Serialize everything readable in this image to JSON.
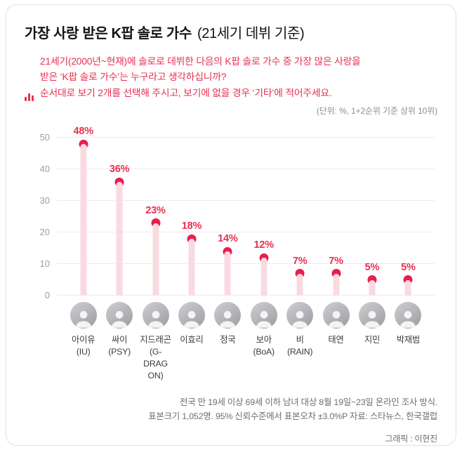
{
  "header": {
    "title_bold": "가장 사랑 받은 K팝 솔로 가수",
    "title_light": "(21세기 데뷔 기준)",
    "description": "21세기(2000년~현재)에 솔로로 데뷔한 다음의 K팝 솔로 가수 중 가장 많은 사랑을\n받은 ‘K팝 솔로 가수’는 누구라고 생각하십니까?\n순서대로 보기 2개를 선택해 주시고, 보기에 없을 경우 ‘기타’에 적어주세요.",
    "unit_note": "(단위: %, 1+2순위 기준 상위 10위)"
  },
  "chart_data": {
    "type": "bar",
    "variant": "lollipop",
    "title": "가장 사랑 받은 K팝 솔로 가수 (21세기 데뷔 기준)",
    "categories": [
      "아이유 (IU)",
      "싸이 (PSY)",
      "지드래곤 (G-DRAGON)",
      "이효리",
      "정국",
      "보아 (BoA)",
      "비 (RAIN)",
      "태연",
      "지민",
      "박재범"
    ],
    "category_display": [
      "아이유\n(IU)",
      "싸이\n(PSY)",
      "지드래곤\n(G-DRAG\nON)",
      "이효리",
      "정국",
      "보아\n(BoA)",
      "비\n(RAIN)",
      "태연",
      "지민",
      "박재범"
    ],
    "values": [
      48,
      36,
      23,
      18,
      14,
      12,
      7,
      7,
      5,
      5
    ],
    "value_labels": [
      "48%",
      "36%",
      "23%",
      "18%",
      "14%",
      "12%",
      "7%",
      "7%",
      "5%",
      "5%"
    ],
    "xlabel": "",
    "ylabel": "",
    "ylim": [
      0,
      50
    ],
    "y_ticks": [
      0,
      10,
      20,
      30,
      40,
      50
    ],
    "grid": true,
    "legend": false,
    "colors": {
      "accent_red": "#e8304f",
      "dot": "#ea1e4e",
      "stem": "#fadae1",
      "gridline": "#ececec",
      "axis_text": "#9e9ea4"
    }
  },
  "footer": {
    "line1": "전국 만 19세 이상 69세 이하 남녀 대상 8월 19일~23일 온라인 조사 방식.",
    "line2": "표본크기 1,052명. 95% 신뢰수준에서 표본오차 ±3.0%P 자료: 스타뉴스, 한국갤럽",
    "credit": "그래픽 : 이현진"
  }
}
